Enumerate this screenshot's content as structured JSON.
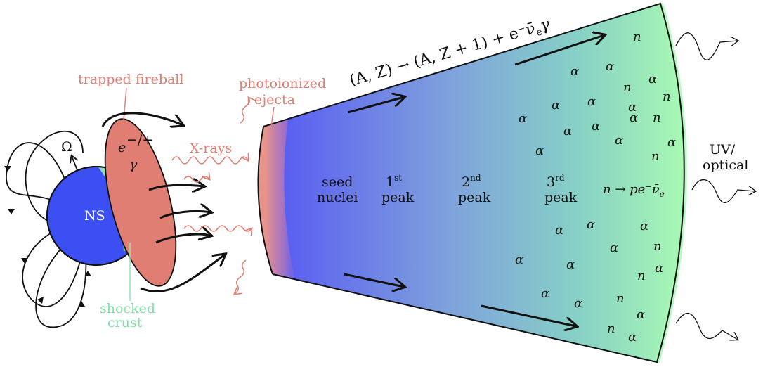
{
  "colors": {
    "neutron_star": "#3b4ff2",
    "fireball": "#e07e74",
    "shocked_crust": "#8fe6ae",
    "ejecta_start": "#5a5af5",
    "ejecta_end": "#a4f5b4",
    "photo_label": "#e07e74"
  },
  "labels": {
    "ns": "NS",
    "omega": "Ω",
    "trapped_fireball": "trapped fireball",
    "fireball_e": "e",
    "fireball_e_sup": "−/+",
    "fireball_gamma": "γ",
    "xrays": "X-rays",
    "shocked_line1": "shocked",
    "shocked_line2": "crust",
    "photo_line1": "photoionized",
    "photo_line2": "ejecta",
    "seed_line1": "seed",
    "seed_line2": "nuclei",
    "peak1_num": "1",
    "peak1_sup": "st",
    "peak2_num": "2",
    "peak2_sup": "nd",
    "peak3_num": "3",
    "peak3_sup": "rd",
    "peak_word": "peak",
    "uv_line1": "UV/",
    "uv_line2": "optical",
    "beta_decay": "n → pe⁻ν̄",
    "beta_decay_sub": "e",
    "reaction_main": "(A, Z) → (A, Z + 1) + e⁻ν̄",
    "reaction_sub": "e",
    "reaction_tail": "γ",
    "alpha": "α",
    "neutron": "n"
  },
  "icons": [
    "magnetic-field-loop-icon",
    "rotation-axis-icon",
    "xray-wave-icon",
    "outflow-arrow-icon",
    "emission-wave-icon"
  ]
}
